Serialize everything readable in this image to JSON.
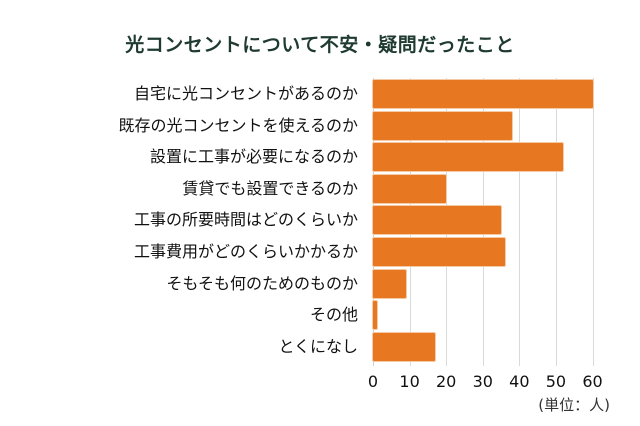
{
  "chart_data": {
    "type": "bar",
    "orientation": "horizontal",
    "title": "光コンセントについて不安・疑問だったこと",
    "categories": [
      "自宅に光コンセントがあるのか",
      "既存の光コンセントを使えるのか",
      "設置に工事が必要になるのか",
      "賃貸でも設置できるのか",
      "工事の所要時間はどのくらいか",
      "工事費用がどのくらいかかるか",
      "そもそも何のためのものか",
      "その他",
      "とくになし"
    ],
    "values": [
      60,
      38,
      52,
      20,
      35,
      36,
      9,
      1,
      17
    ],
    "xlabel": "",
    "ylabel": "",
    "unit_label": "(単位：人)",
    "xlim": [
      0,
      60
    ],
    "xticks": [
      "0",
      "10",
      "20",
      "30",
      "40",
      "50",
      "60"
    ],
    "grid": true,
    "legend": null,
    "bar_color": "#e87722"
  },
  "colors": {
    "title": "#1f3a30",
    "bar": "#e87722",
    "grid": "#d9d9d9"
  }
}
